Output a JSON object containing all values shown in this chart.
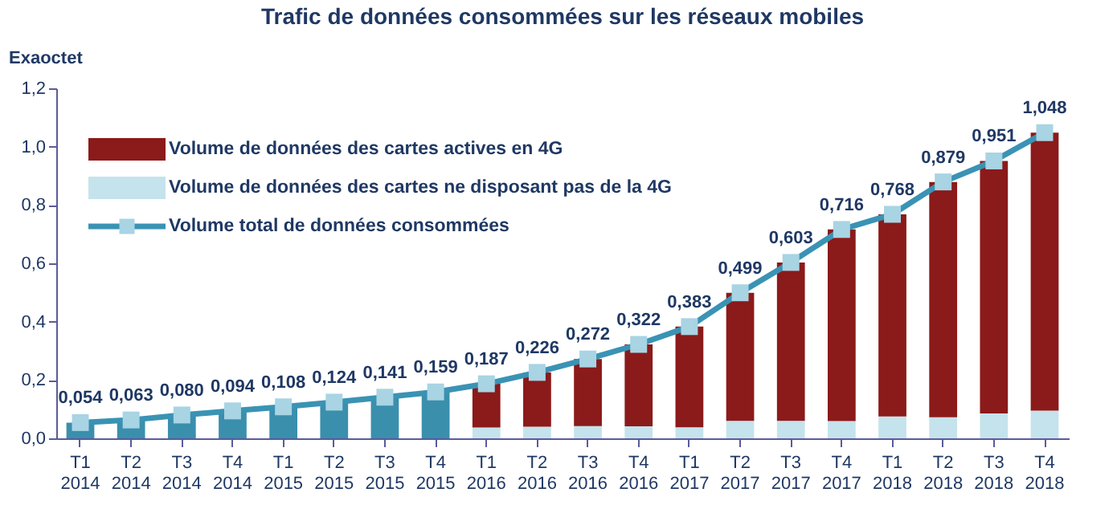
{
  "chart_data": {
    "type": "bar",
    "stacked": true,
    "title": "Trafic de données consommées sur les réseaux mobiles",
    "ylabel": "Exaoctet",
    "categories": [
      "T1 2014",
      "T2 2014",
      "T3 2014",
      "T4 2014",
      "T1 2015",
      "T2 2015",
      "T3 2015",
      "T4 2015",
      "T1 2016",
      "T2 2016",
      "T3 2016",
      "T4 2016",
      "T1 2017",
      "T2 2017",
      "T3 2017",
      "T4 2017",
      "T1 2018",
      "T2 2018",
      "T3 2018",
      "T4 2018"
    ],
    "series": [
      {
        "name": "Volume de données des cartes ne disposant pas de la 4G",
        "color": "#c5e3ec",
        "colors": [
          "#3a8fad",
          "#3a8fad",
          "#3a8fad",
          "#3a8fad",
          "#3a8fad",
          "#3a8fad",
          "#3a8fad",
          "#3a8fad",
          "#c5e3ec",
          "#c5e3ec",
          "#c5e3ec",
          "#c5e3ec",
          "#c5e3ec",
          "#c5e3ec",
          "#c5e3ec",
          "#c5e3ec",
          "#c5e3ec",
          "#c5e3ec",
          "#c5e3ec",
          "#c5e3ec"
        ],
        "values": [
          0.054,
          0.063,
          0.08,
          0.094,
          0.108,
          0.124,
          0.141,
          0.159,
          0.037,
          0.04,
          0.042,
          0.041,
          0.038,
          0.06,
          0.06,
          0.059,
          0.075,
          0.072,
          0.085,
          0.095
        ]
      },
      {
        "name": "Volume de données des cartes actives en 4G",
        "color": "#8b1a1a",
        "values": [
          null,
          null,
          null,
          null,
          null,
          null,
          null,
          null,
          0.15,
          0.186,
          0.23,
          0.281,
          0.345,
          0.439,
          0.543,
          0.657,
          0.693,
          0.807,
          0.866,
          0.953
        ]
      },
      {
        "name": "Volume total de données consommées",
        "type": "line",
        "color": "#3a93b4",
        "marker": "square",
        "values": [
          0.054,
          0.063,
          0.08,
          0.094,
          0.108,
          0.124,
          0.141,
          0.159,
          0.187,
          0.226,
          0.272,
          0.322,
          0.383,
          0.499,
          0.603,
          0.716,
          0.768,
          0.879,
          0.951,
          1.048
        ],
        "value_labels": [
          "0,054",
          "0,063",
          "0,080",
          "0,094",
          "0,108",
          "0,124",
          "0,141",
          "0,159",
          "0,187",
          "0,226",
          "0,272",
          "0,322",
          "0,383",
          "0,499",
          "0,603",
          "0,716",
          "0,768",
          "0,879",
          "0,951",
          "1,048"
        ]
      }
    ],
    "legend": "top left",
    "grid": false,
    "ylim": [
      0,
      1.2
    ],
    "yticks": [
      {
        "value": 0,
        "label": "0,0"
      },
      {
        "value": 0.2,
        "label": "0,2"
      },
      {
        "value": 0.4,
        "label": "0,4"
      },
      {
        "value": 0.6,
        "label": "0,6"
      },
      {
        "value": 0.8,
        "label": "0,8"
      },
      {
        "value": 1.0,
        "label": "1,0"
      },
      {
        "value": 1.2,
        "label": "1,2"
      }
    ]
  }
}
